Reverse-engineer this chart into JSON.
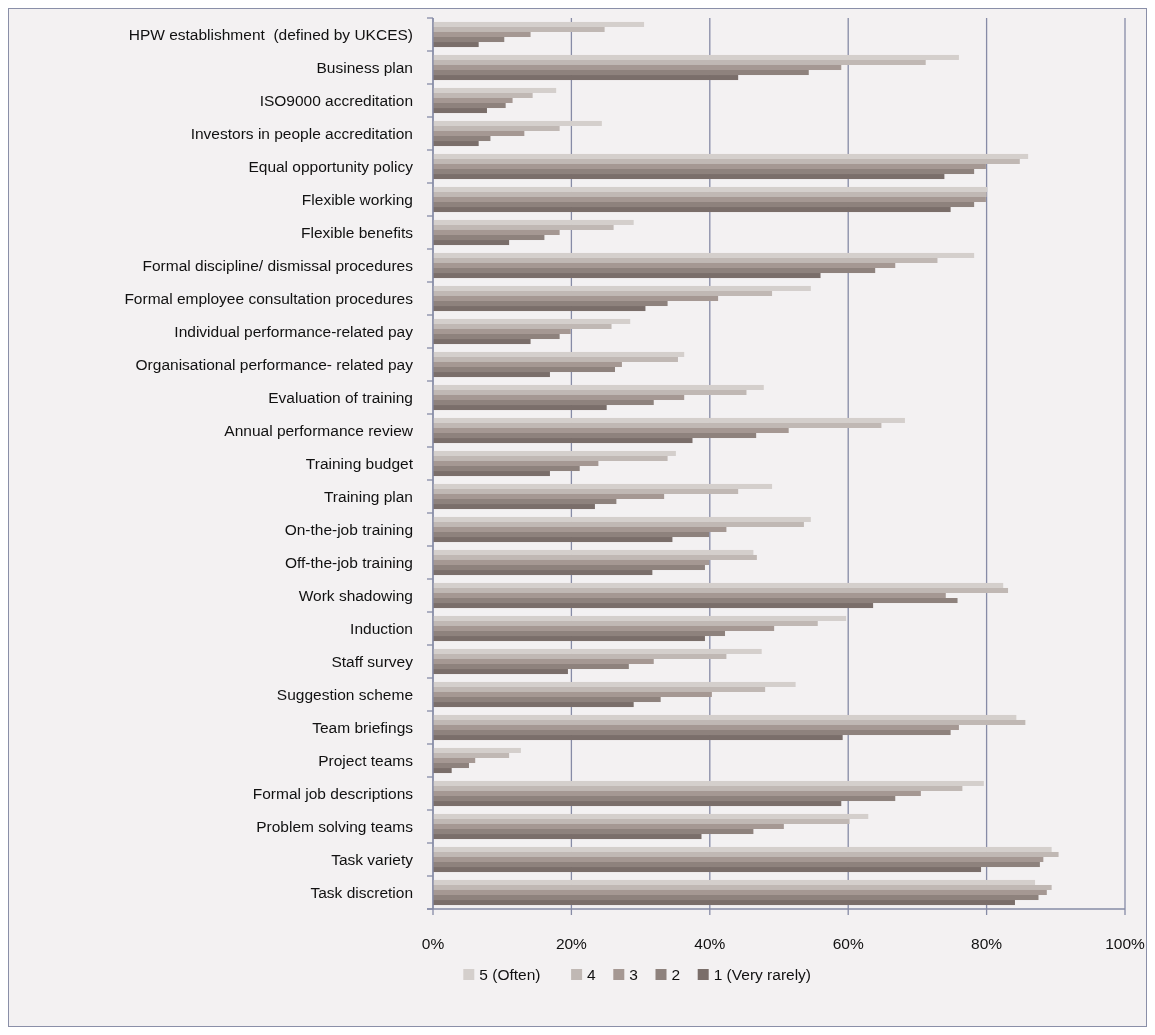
{
  "chart_data": {
    "type": "bar",
    "orientation": "horizontal",
    "categories": [
      "HPW establishment  (defined by UKCES)",
      "Business plan",
      "ISO9000 accreditation",
      "Investors in people accreditation",
      "Equal opportunity policy",
      "Flexible working",
      "Flexible benefits",
      "Formal discipline/ dismissal procedures",
      "Formal employee consultation procedures",
      "Individual performance-related pay",
      "Organisational performance- related pay",
      "Evaluation of training",
      "Annual performance review",
      "Training budget",
      "Training plan",
      "On-the-job training",
      "Off-the-job training",
      "Work shadowing",
      "Induction",
      "Staff survey",
      "Suggestion scheme",
      "Team briefings",
      "Project teams",
      "Formal job descriptions",
      "Problem solving teams",
      "Task variety",
      "Task discretion"
    ],
    "series": [
      {
        "name": "5 (Often)",
        "color": "#d4cfcc",
        "values": [
          30.5,
          76.0,
          17.8,
          24.4,
          86.0,
          80.1,
          29.0,
          78.2,
          54.6,
          28.5,
          36.3,
          47.8,
          68.2,
          35.1,
          49.0,
          54.6,
          46.3,
          82.4,
          59.7,
          47.5,
          52.4,
          84.3,
          12.7,
          79.6,
          62.9,
          89.4,
          87.0
        ]
      },
      {
        "name": "4",
        "color": "#c0b8b4",
        "values": [
          24.8,
          71.2,
          14.4,
          18.3,
          84.8,
          80.0,
          26.1,
          72.9,
          49.0,
          25.8,
          35.4,
          45.3,
          64.8,
          33.9,
          44.1,
          53.6,
          46.8,
          83.1,
          55.6,
          42.4,
          48.0,
          85.6,
          11.0,
          76.5,
          60.2,
          90.4,
          89.4
        ]
      },
      {
        "name": "3",
        "color": "#a59893",
        "values": [
          14.1,
          59.0,
          11.5,
          13.2,
          79.9,
          79.9,
          18.3,
          66.8,
          41.2,
          19.9,
          27.3,
          36.3,
          51.4,
          23.9,
          33.4,
          42.4,
          39.9,
          74.1,
          49.3,
          31.9,
          40.3,
          76.0,
          6.1,
          70.5,
          50.7,
          88.2,
          88.7
        ]
      },
      {
        "name": "2",
        "color": "#8e827d",
        "values": [
          10.3,
          54.3,
          10.5,
          8.3,
          78.2,
          78.2,
          16.1,
          63.9,
          33.9,
          18.3,
          26.3,
          31.9,
          46.7,
          21.2,
          26.5,
          39.9,
          39.3,
          75.8,
          42.2,
          28.3,
          32.9,
          74.8,
          5.2,
          66.8,
          46.3,
          87.7,
          87.5
        ]
      },
      {
        "name": "1 (Very rarely)",
        "color": "#7a6e6a",
        "values": [
          6.6,
          44.1,
          7.8,
          6.6,
          73.9,
          74.8,
          11.0,
          56.0,
          30.7,
          14.1,
          16.9,
          25.1,
          37.5,
          16.9,
          23.4,
          34.6,
          31.7,
          63.6,
          39.3,
          19.5,
          29.0,
          59.2,
          2.7,
          59.0,
          38.8,
          79.2,
          84.1
        ]
      }
    ],
    "xlim": [
      0,
      100
    ],
    "xticks": [
      {
        "value": 0,
        "label": "0%"
      },
      {
        "value": 20,
        "label": "20%"
      },
      {
        "value": 40,
        "label": "40%"
      },
      {
        "value": 60,
        "label": "60%"
      },
      {
        "value": 80,
        "label": "80%"
      },
      {
        "value": 100,
        "label": "100%"
      }
    ],
    "grid": "x",
    "legend": "bottom"
  }
}
